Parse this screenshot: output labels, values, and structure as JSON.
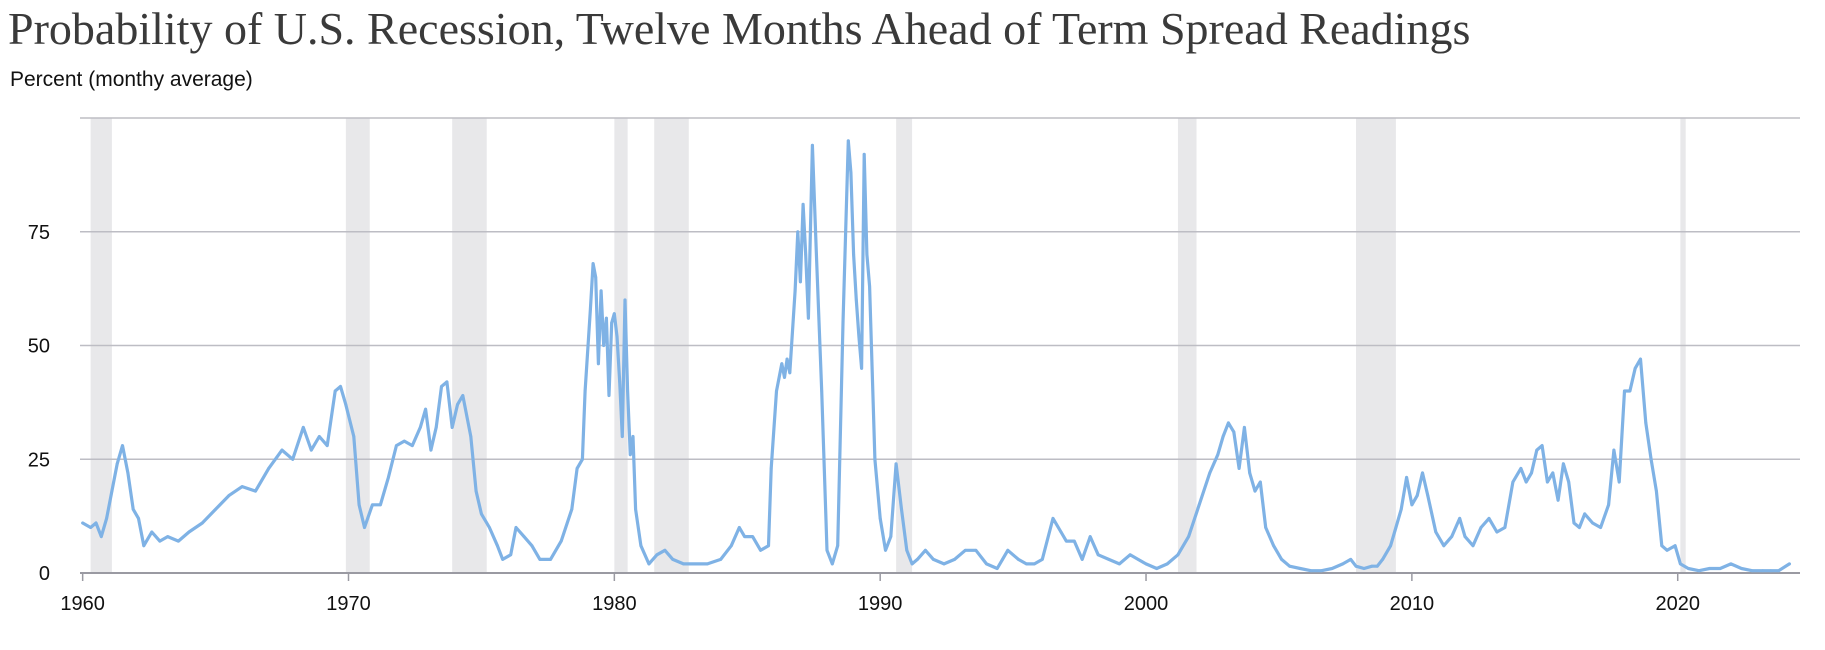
{
  "chart_data": {
    "type": "line",
    "title": "Probability of U.S. Recession, Twelve Months Ahead of Term Spread Readings",
    "ylabel": "Percent (monthy average)",
    "xlabel": "",
    "xlim": [
      1959.9,
      2024.6
    ],
    "ylim": [
      0,
      100
    ],
    "x_ticks": [
      "1960",
      "1970",
      "1980",
      "1990",
      "2000",
      "2010",
      "2020"
    ],
    "y_ticks": [
      "0",
      "25",
      "50",
      "75"
    ],
    "grid": "horizontal",
    "line_color": "#7fb2e5",
    "recession_shading_color": "#e8e8ea",
    "recession_periods": [
      [
        1960.3,
        1961.1
      ],
      [
        1969.9,
        1970.8
      ],
      [
        1973.9,
        1975.2
      ],
      [
        1980.0,
        1980.5
      ],
      [
        1981.5,
        1982.8
      ],
      [
        1990.6,
        1991.2
      ],
      [
        2001.2,
        2001.9
      ],
      [
        2007.9,
        2009.4
      ],
      [
        2020.1,
        2020.3
      ]
    ],
    "series": [
      {
        "points": [
          [
            1960.0,
            11
          ],
          [
            1960.3,
            10
          ],
          [
            1960.5,
            11
          ],
          [
            1960.7,
            8
          ],
          [
            1960.9,
            12
          ],
          [
            1961.1,
            18
          ],
          [
            1961.3,
            24
          ],
          [
            1961.5,
            28
          ],
          [
            1961.7,
            22
          ],
          [
            1961.9,
            14
          ],
          [
            1962.1,
            12
          ],
          [
            1962.3,
            6
          ],
          [
            1962.6,
            9
          ],
          [
            1962.9,
            7
          ],
          [
            1963.2,
            8
          ],
          [
            1963.6,
            7
          ],
          [
            1964.0,
            9
          ],
          [
            1964.5,
            11
          ],
          [
            1965.0,
            14
          ],
          [
            1965.5,
            17
          ],
          [
            1966.0,
            19
          ],
          [
            1966.5,
            18
          ],
          [
            1967.0,
            23
          ],
          [
            1967.5,
            27
          ],
          [
            1967.9,
            25
          ],
          [
            1968.3,
            32
          ],
          [
            1968.6,
            27
          ],
          [
            1968.9,
            30
          ],
          [
            1969.2,
            28
          ],
          [
            1969.5,
            40
          ],
          [
            1969.7,
            41
          ],
          [
            1969.9,
            37
          ],
          [
            1970.2,
            30
          ],
          [
            1970.4,
            15
          ],
          [
            1970.6,
            10
          ],
          [
            1970.9,
            15
          ],
          [
            1971.2,
            15
          ],
          [
            1971.5,
            21
          ],
          [
            1971.8,
            28
          ],
          [
            1972.1,
            29
          ],
          [
            1972.4,
            28
          ],
          [
            1972.7,
            32
          ],
          [
            1972.9,
            36
          ],
          [
            1973.1,
            27
          ],
          [
            1973.3,
            32
          ],
          [
            1973.5,
            41
          ],
          [
            1973.7,
            42
          ],
          [
            1973.9,
            32
          ],
          [
            1974.1,
            37
          ],
          [
            1974.3,
            39
          ],
          [
            1974.6,
            30
          ],
          [
            1974.8,
            18
          ],
          [
            1975.0,
            13
          ],
          [
            1975.3,
            10
          ],
          [
            1975.6,
            6
          ],
          [
            1975.8,
            3
          ],
          [
            1976.1,
            4
          ],
          [
            1976.3,
            10
          ],
          [
            1976.6,
            8
          ],
          [
            1976.9,
            6
          ],
          [
            1977.2,
            3
          ],
          [
            1977.6,
            3
          ],
          [
            1978.0,
            7
          ],
          [
            1978.4,
            14
          ],
          [
            1978.6,
            23
          ],
          [
            1978.8,
            25
          ],
          [
            1978.9,
            40
          ],
          [
            1979.1,
            58
          ],
          [
            1979.2,
            68
          ],
          [
            1979.3,
            65
          ],
          [
            1979.4,
            46
          ],
          [
            1979.5,
            62
          ],
          [
            1979.6,
            50
          ],
          [
            1979.7,
            56
          ],
          [
            1979.8,
            39
          ],
          [
            1979.9,
            55
          ],
          [
            1980.0,
            57
          ],
          [
            1980.1,
            52
          ],
          [
            1980.2,
            42
          ],
          [
            1980.3,
            30
          ],
          [
            1980.4,
            60
          ],
          [
            1980.5,
            40
          ],
          [
            1980.6,
            26
          ],
          [
            1980.7,
            30
          ],
          [
            1980.8,
            14
          ],
          [
            1981.0,
            6
          ],
          [
            1981.3,
            2
          ],
          [
            1981.6,
            4
          ],
          [
            1981.9,
            5
          ],
          [
            1982.2,
            3
          ],
          [
            1982.6,
            2
          ],
          [
            1983.0,
            2
          ],
          [
            1983.5,
            2
          ],
          [
            1984.0,
            3
          ],
          [
            1984.4,
            6
          ],
          [
            1984.7,
            10
          ],
          [
            1984.9,
            8
          ],
          [
            1985.2,
            8
          ],
          [
            1985.5,
            5
          ],
          [
            1985.8,
            6
          ],
          [
            1985.9,
            23
          ],
          [
            1986.1,
            40
          ],
          [
            1986.3,
            46
          ],
          [
            1986.4,
            43
          ],
          [
            1986.5,
            47
          ],
          [
            1986.6,
            44
          ],
          [
            1986.8,
            62
          ],
          [
            1986.9,
            75
          ],
          [
            1987.0,
            64
          ],
          [
            1987.1,
            81
          ],
          [
            1987.2,
            70
          ],
          [
            1987.3,
            56
          ],
          [
            1987.45,
            94
          ],
          [
            1987.6,
            70
          ],
          [
            1987.8,
            40
          ],
          [
            1988.0,
            5
          ],
          [
            1988.2,
            2
          ],
          [
            1988.4,
            6
          ],
          [
            1988.6,
            55
          ],
          [
            1988.8,
            95
          ],
          [
            1988.9,
            88
          ],
          [
            1989.0,
            70
          ],
          [
            1989.1,
            60
          ],
          [
            1989.2,
            52
          ],
          [
            1989.3,
            45
          ],
          [
            1989.4,
            92
          ],
          [
            1989.5,
            70
          ],
          [
            1989.6,
            63
          ],
          [
            1989.8,
            25
          ],
          [
            1990.0,
            12
          ],
          [
            1990.2,
            5
          ],
          [
            1990.4,
            8
          ],
          [
            1990.6,
            24
          ],
          [
            1990.8,
            14
          ],
          [
            1991.0,
            5
          ],
          [
            1991.2,
            2
          ],
          [
            1991.4,
            3
          ],
          [
            1991.7,
            5
          ],
          [
            1992.0,
            3
          ],
          [
            1992.4,
            2
          ],
          [
            1992.8,
            3
          ],
          [
            1993.2,
            5
          ],
          [
            1993.6,
            5
          ],
          [
            1994.0,
            2
          ],
          [
            1994.4,
            1
          ],
          [
            1994.6,
            3
          ],
          [
            1994.8,
            5
          ],
          [
            1995.2,
            3
          ],
          [
            1995.5,
            2
          ],
          [
            1995.8,
            2
          ],
          [
            1996.1,
            3
          ],
          [
            1996.5,
            12
          ],
          [
            1996.8,
            9
          ],
          [
            1997.0,
            7
          ],
          [
            1997.3,
            7
          ],
          [
            1997.6,
            3
          ],
          [
            1997.9,
            8
          ],
          [
            1998.2,
            4
          ],
          [
            1998.6,
            3
          ],
          [
            1999.0,
            2
          ],
          [
            1999.4,
            4
          ],
          [
            1999.7,
            3
          ],
          [
            2000.0,
            2
          ],
          [
            2000.4,
            1
          ],
          [
            2000.8,
            2
          ],
          [
            2001.2,
            4
          ],
          [
            2001.6,
            8
          ],
          [
            2002.0,
            15
          ],
          [
            2002.4,
            22
          ],
          [
            2002.7,
            26
          ],
          [
            2002.9,
            30
          ],
          [
            2003.1,
            33
          ],
          [
            2003.3,
            31
          ],
          [
            2003.5,
            23
          ],
          [
            2003.7,
            32
          ],
          [
            2003.9,
            22
          ],
          [
            2004.1,
            18
          ],
          [
            2004.3,
            20
          ],
          [
            2004.5,
            10
          ],
          [
            2004.8,
            6
          ],
          [
            2005.1,
            3
          ],
          [
            2005.4,
            1.5
          ],
          [
            2005.8,
            1
          ],
          [
            2006.2,
            0.5
          ],
          [
            2006.6,
            0.5
          ],
          [
            2007.0,
            1
          ],
          [
            2007.4,
            2
          ],
          [
            2007.7,
            3
          ],
          [
            2007.9,
            1.5
          ],
          [
            2008.2,
            1
          ],
          [
            2008.5,
            1.5
          ],
          [
            2008.7,
            1.5
          ],
          [
            2008.9,
            3
          ],
          [
            2009.2,
            6
          ],
          [
            2009.4,
            10
          ],
          [
            2009.6,
            14
          ],
          [
            2009.8,
            21
          ],
          [
            2010.0,
            15
          ],
          [
            2010.2,
            17
          ],
          [
            2010.4,
            22
          ],
          [
            2010.6,
            17
          ],
          [
            2010.9,
            9
          ],
          [
            2011.2,
            6
          ],
          [
            2011.5,
            8
          ],
          [
            2011.8,
            12
          ],
          [
            2012.0,
            8
          ],
          [
            2012.3,
            6
          ],
          [
            2012.6,
            10
          ],
          [
            2012.9,
            12
          ],
          [
            2013.2,
            9
          ],
          [
            2013.5,
            10
          ],
          [
            2013.8,
            20
          ],
          [
            2014.1,
            23
          ],
          [
            2014.3,
            20
          ],
          [
            2014.5,
            22
          ],
          [
            2014.7,
            27
          ],
          [
            2014.9,
            28
          ],
          [
            2015.1,
            20
          ],
          [
            2015.3,
            22
          ],
          [
            2015.5,
            16
          ],
          [
            2015.7,
            24
          ],
          [
            2015.9,
            20
          ],
          [
            2016.1,
            11
          ],
          [
            2016.3,
            10
          ],
          [
            2016.5,
            13
          ],
          [
            2016.8,
            11
          ],
          [
            2017.1,
            10
          ],
          [
            2017.4,
            15
          ],
          [
            2017.6,
            27
          ],
          [
            2017.8,
            20
          ],
          [
            2018.0,
            40
          ],
          [
            2018.2,
            40
          ],
          [
            2018.4,
            45
          ],
          [
            2018.6,
            47
          ],
          [
            2018.8,
            33
          ],
          [
            2019.0,
            25
          ],
          [
            2019.2,
            18
          ],
          [
            2019.4,
            6
          ],
          [
            2019.6,
            5
          ],
          [
            2019.9,
            6
          ],
          [
            2020.1,
            2
          ],
          [
            2020.4,
            1
          ],
          [
            2020.8,
            0.5
          ],
          [
            2021.2,
            1
          ],
          [
            2021.6,
            1
          ],
          [
            2022.0,
            2
          ],
          [
            2022.4,
            1
          ],
          [
            2022.8,
            0.5
          ],
          [
            2023.2,
            0.5
          ],
          [
            2023.5,
            0.5
          ],
          [
            2023.8,
            0.5
          ],
          [
            2024.2,
            2
          ]
        ]
      }
    ]
  }
}
